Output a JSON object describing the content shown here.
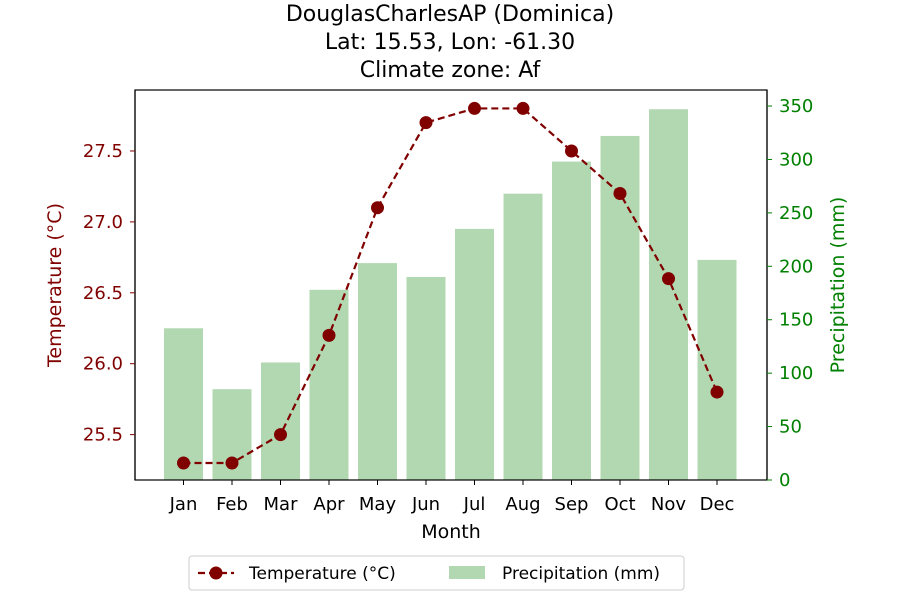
{
  "colors": {
    "temperature": "#800000",
    "precipitation": "#008000",
    "bar_fill": "#b2d8b2",
    "axis": "#000000"
  },
  "chart_data": {
    "type": "bar+line",
    "title_lines": [
      "DouglasCharlesAP (Dominica)",
      "Lat: 15.53, Lon: -61.30",
      "Climate zone: Af"
    ],
    "xlabel": "Month",
    "ylabel_left": "Temperature (°C)",
    "ylabel_right": "Precipitation (mm)",
    "categories": [
      "Jan",
      "Feb",
      "Mar",
      "Apr",
      "May",
      "Jun",
      "Jul",
      "Aug",
      "Sep",
      "Oct",
      "Nov",
      "Dec"
    ],
    "y_left_lim": [
      25.18,
      27.93
    ],
    "y_left_ticks": [
      "25.5",
      "26.0",
      "26.5",
      "27.0",
      "27.5"
    ],
    "y_right_lim": [
      0,
      365
    ],
    "y_right_ticks": [
      "0",
      "50",
      "100",
      "150",
      "200",
      "250",
      "300",
      "350"
    ],
    "legend_position": "bottom-center, below axes",
    "grid": false,
    "series": [
      {
        "name": "Temperature (°C)",
        "type": "line",
        "axis": "left",
        "style": "dashed, circle markers",
        "values": [
          25.3,
          25.3,
          25.5,
          26.2,
          27.1,
          27.7,
          27.8,
          27.8,
          27.5,
          27.2,
          26.6,
          25.8
        ]
      },
      {
        "name": "Precipitation (mm)",
        "type": "bar",
        "axis": "right",
        "values": [
          142,
          85,
          110,
          178,
          203,
          190,
          235,
          268,
          298,
          322,
          347,
          206
        ]
      }
    ]
  }
}
